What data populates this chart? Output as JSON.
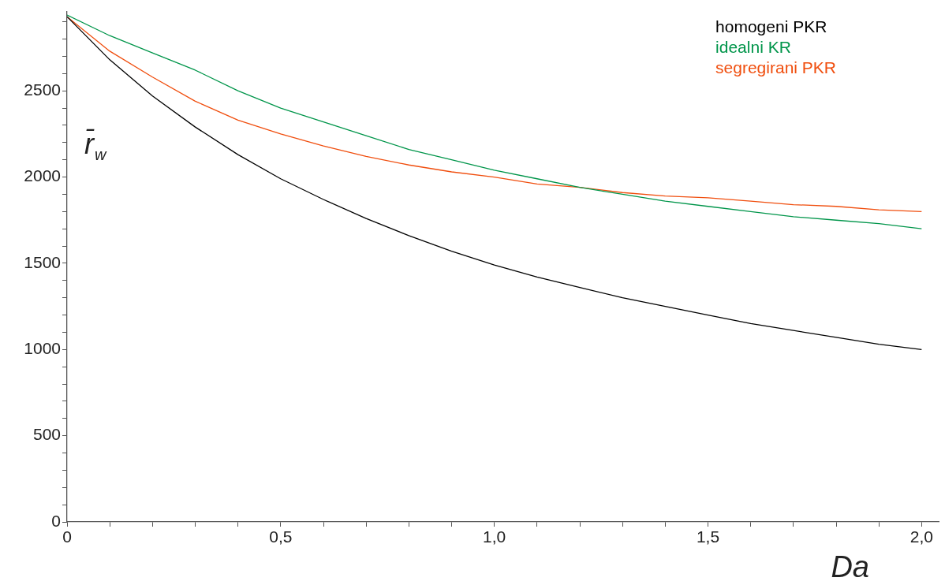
{
  "chart_data": {
    "type": "line",
    "xlabel": "Da",
    "ylabel": "r̄$_{w}$",
    "legend": "top right",
    "grid": false,
    "line_style": "solid",
    "marker": "none",
    "x": [
      0,
      0.1,
      0.2,
      0.3,
      0.4,
      0.5,
      0.6,
      0.7,
      0.8,
      0.9,
      1.0,
      1.1,
      1.2,
      1.3,
      1.4,
      1.5,
      1.6,
      1.7,
      1.8,
      1.9,
      2.0
    ],
    "xlim": [
      0,
      2.04
    ],
    "ylim": [
      0,
      2960
    ],
    "xticks": [
      0,
      {
        "value": 0.1,
        "label": null
      },
      {
        "value": 0.2,
        "label": null
      },
      {
        "value": 0.3,
        "label": null
      },
      {
        "value": 0.4,
        "label": null
      },
      {
        "value": 0.5,
        "label": "0,5"
      },
      {
        "value": 0.6,
        "label": null
      },
      {
        "value": 0.7,
        "label": null
      },
      {
        "value": 0.8,
        "label": null
      },
      {
        "value": 0.9,
        "label": null
      },
      {
        "value": 1.0,
        "label": "1,0"
      },
      {
        "value": 1.1,
        "label": null
      },
      {
        "value": 1.2,
        "label": null
      },
      {
        "value": 1.3,
        "label": null
      },
      {
        "value": 1.4,
        "label": null
      },
      {
        "value": 1.5,
        "label": "1,5"
      },
      {
        "value": 1.6,
        "label": null
      },
      {
        "value": 1.7,
        "label": null
      },
      {
        "value": 1.8,
        "label": null
      },
      {
        "value": 1.9,
        "label": null
      },
      {
        "value": 2.0,
        "label": "2,0"
      }
    ],
    "yticks": [
      0,
      {
        "value": 100,
        "label": null
      },
      {
        "value": 200,
        "label": null
      },
      {
        "value": 300,
        "label": null
      },
      {
        "value": 400,
        "label": null
      },
      500,
      {
        "value": 600,
        "label": null
      },
      {
        "value": 700,
        "label": null
      },
      {
        "value": 800,
        "label": null
      },
      {
        "value": 900,
        "label": null
      },
      1000,
      {
        "value": 1100,
        "label": null
      },
      {
        "value": 1200,
        "label": null
      },
      {
        "value": 1300,
        "label": null
      },
      {
        "value": 1400,
        "label": null
      },
      1500,
      {
        "value": 1600,
        "label": null
      },
      {
        "value": 1700,
        "label": null
      },
      {
        "value": 1800,
        "label": null
      },
      {
        "value": 1900,
        "label": null
      },
      2000,
      {
        "value": 2100,
        "label": null
      },
      {
        "value": 2200,
        "label": null
      },
      {
        "value": 2300,
        "label": null
      },
      {
        "value": 2400,
        "label": null
      },
      2500,
      {
        "value": 2600,
        "label": null
      },
      {
        "value": 2700,
        "label": null
      },
      {
        "value": 2800,
        "label": null
      },
      {
        "value": 2900,
        "label": null
      }
    ],
    "series": [
      {
        "name": "homogeni PKR",
        "color": "#000000",
        "values": [
          2930,
          2680,
          2470,
          2290,
          2130,
          1990,
          1870,
          1760,
          1660,
          1570,
          1490,
          1420,
          1360,
          1300,
          1250,
          1200,
          1150,
          1110,
          1070,
          1030,
          1000
        ]
      },
      {
        "name": "idealni KR",
        "color": "#00954a",
        "values": [
          2940,
          2820,
          2720,
          2620,
          2500,
          2400,
          2320,
          2240,
          2160,
          2100,
          2040,
          1990,
          1940,
          1900,
          1860,
          1830,
          1800,
          1770,
          1750,
          1730,
          1700
        ]
      },
      {
        "name": "segregirani PKR",
        "color": "#f04e0e",
        "values": [
          2930,
          2730,
          2580,
          2440,
          2330,
          2250,
          2180,
          2120,
          2070,
          2030,
          2000,
          1960,
          1940,
          1910,
          1890,
          1880,
          1860,
          1840,
          1830,
          1810,
          1800
        ]
      }
    ]
  }
}
